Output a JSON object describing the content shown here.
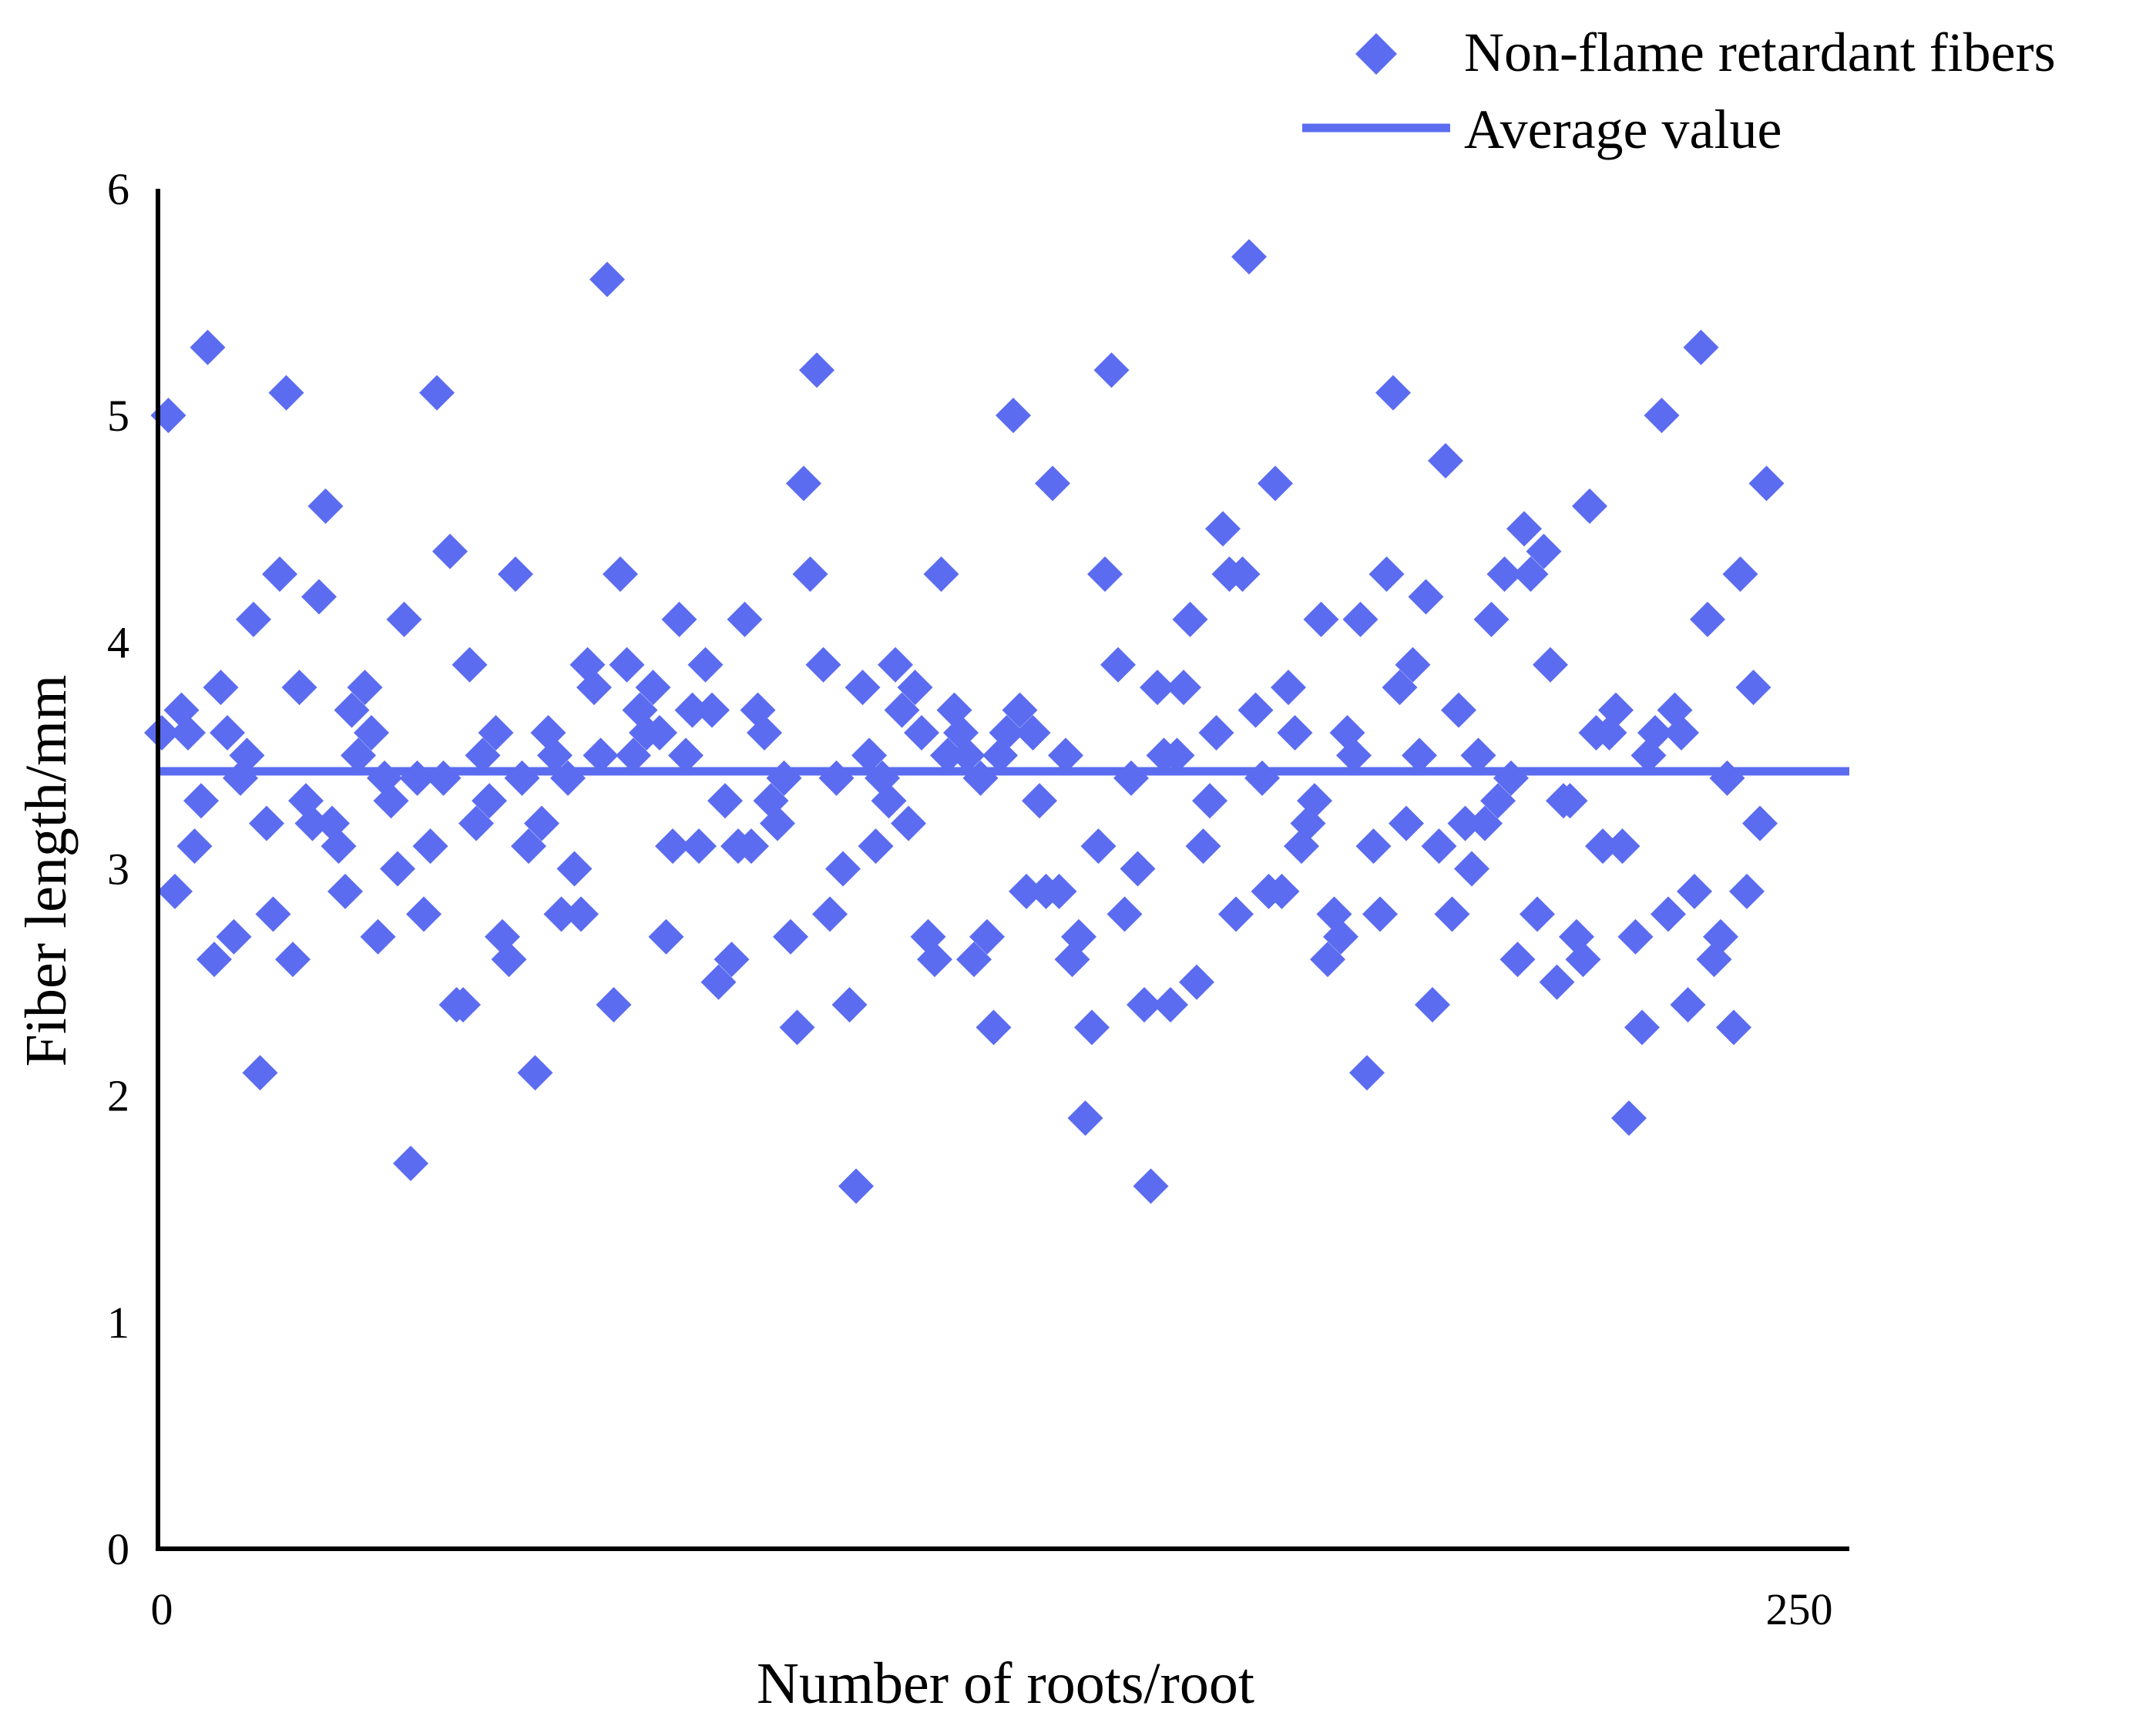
{
  "chart_data": {
    "type": "scatter",
    "title": "",
    "xlabel": "Number of roots/root",
    "ylabel": "Fiber length/mm",
    "xlim": [
      0,
      250
    ],
    "ylim": [
      0,
      6
    ],
    "x_ticks": [
      "0",
      "250"
    ],
    "y_ticks": [
      "0",
      "1",
      "2",
      "3",
      "4",
      "5",
      "6"
    ],
    "grid": false,
    "legend_position": "top-right",
    "colors": {
      "series": "#5B6CF0",
      "axis": "#000000"
    },
    "series": [
      {
        "name": "Non-flame retardant fibers",
        "marker": "diamond",
        "points": [
          [
            0,
            3.6
          ],
          [
            1,
            5.0
          ],
          [
            2,
            2.9
          ],
          [
            3,
            3.7
          ],
          [
            4,
            3.6
          ],
          [
            5,
            3.1
          ],
          [
            6,
            3.3
          ],
          [
            7,
            5.3
          ],
          [
            8,
            2.6
          ],
          [
            9,
            3.8
          ],
          [
            10,
            3.6
          ],
          [
            11,
            2.7
          ],
          [
            12,
            3.4
          ],
          [
            13,
            3.5
          ],
          [
            14,
            4.1
          ],
          [
            15,
            2.1
          ],
          [
            16,
            3.2
          ],
          [
            17,
            2.8
          ],
          [
            18,
            4.3
          ],
          [
            19,
            5.1
          ],
          [
            20,
            2.6
          ],
          [
            21,
            3.8
          ],
          [
            22,
            3.3
          ],
          [
            23,
            3.2
          ],
          [
            24,
            4.2
          ],
          [
            25,
            4.6
          ],
          [
            26,
            3.2
          ],
          [
            27,
            3.1
          ],
          [
            28,
            2.9
          ],
          [
            29,
            3.7
          ],
          [
            30,
            3.5
          ],
          [
            31,
            3.8
          ],
          [
            32,
            3.6
          ],
          [
            33,
            2.7
          ],
          [
            34,
            3.4
          ],
          [
            35,
            3.3
          ],
          [
            36,
            3.0
          ],
          [
            37,
            4.1
          ],
          [
            38,
            1.7
          ],
          [
            39,
            3.4
          ],
          [
            40,
            2.8
          ],
          [
            41,
            3.1
          ],
          [
            42,
            5.1
          ],
          [
            43,
            3.4
          ],
          [
            44,
            4.4
          ],
          [
            45,
            2.4
          ],
          [
            46,
            2.4
          ],
          [
            47,
            3.9
          ],
          [
            48,
            3.2
          ],
          [
            49,
            3.5
          ],
          [
            50,
            3.3
          ],
          [
            51,
            3.6
          ],
          [
            52,
            2.7
          ],
          [
            53,
            2.6
          ],
          [
            54,
            4.3
          ],
          [
            55,
            3.4
          ],
          [
            56,
            3.1
          ],
          [
            57,
            2.1
          ],
          [
            58,
            3.2
          ],
          [
            59,
            3.6
          ],
          [
            60,
            3.5
          ],
          [
            61,
            2.8
          ],
          [
            62,
            3.4
          ],
          [
            63,
            3.0
          ],
          [
            64,
            2.8
          ],
          [
            65,
            3.9
          ],
          [
            66,
            3.8
          ],
          [
            67,
            3.5
          ],
          [
            68,
            5.6
          ],
          [
            69,
            2.4
          ],
          [
            70,
            4.3
          ],
          [
            71,
            3.9
          ],
          [
            72,
            3.5
          ],
          [
            73,
            3.7
          ],
          [
            74,
            3.6
          ],
          [
            75,
            3.8
          ],
          [
            76,
            3.6
          ],
          [
            77,
            2.7
          ],
          [
            78,
            3.1
          ],
          [
            79,
            4.1
          ],
          [
            80,
            3.5
          ],
          [
            81,
            3.7
          ],
          [
            82,
            3.1
          ],
          [
            83,
            3.9
          ],
          [
            84,
            3.7
          ],
          [
            85,
            2.5
          ],
          [
            86,
            3.3
          ],
          [
            87,
            2.6
          ],
          [
            88,
            3.1
          ],
          [
            89,
            4.1
          ],
          [
            90,
            3.1
          ],
          [
            91,
            3.7
          ],
          [
            92,
            3.6
          ],
          [
            93,
            3.3
          ],
          [
            94,
            3.2
          ],
          [
            95,
            3.4
          ],
          [
            96,
            2.7
          ],
          [
            97,
            2.3
          ],
          [
            98,
            4.7
          ],
          [
            99,
            4.3
          ],
          [
            100,
            5.2
          ],
          [
            101,
            3.9
          ],
          [
            102,
            2.8
          ],
          [
            103,
            3.4
          ],
          [
            104,
            3.0
          ],
          [
            105,
            2.4
          ],
          [
            106,
            1.6
          ],
          [
            107,
            3.8
          ],
          [
            108,
            3.5
          ],
          [
            109,
            3.1
          ],
          [
            110,
            3.4
          ],
          [
            111,
            3.3
          ],
          [
            112,
            3.9
          ],
          [
            113,
            3.7
          ],
          [
            114,
            3.2
          ],
          [
            115,
            3.8
          ],
          [
            116,
            3.6
          ],
          [
            117,
            2.7
          ],
          [
            118,
            2.6
          ],
          [
            119,
            4.3
          ],
          [
            120,
            3.5
          ],
          [
            121,
            3.7
          ],
          [
            122,
            3.6
          ],
          [
            123,
            3.5
          ],
          [
            124,
            2.6
          ],
          [
            125,
            3.4
          ],
          [
            126,
            2.7
          ],
          [
            127,
            2.3
          ],
          [
            128,
            3.5
          ],
          [
            129,
            3.6
          ],
          [
            130,
            5.0
          ],
          [
            131,
            3.7
          ],
          [
            132,
            2.9
          ],
          [
            133,
            3.6
          ],
          [
            134,
            3.3
          ],
          [
            135,
            2.9
          ],
          [
            136,
            4.7
          ],
          [
            137,
            2.9
          ],
          [
            138,
            3.5
          ],
          [
            139,
            2.6
          ],
          [
            140,
            2.7
          ],
          [
            141,
            1.9
          ],
          [
            142,
            2.3
          ],
          [
            143,
            3.1
          ],
          [
            144,
            4.3
          ],
          [
            145,
            5.2
          ],
          [
            146,
            3.9
          ],
          [
            147,
            2.8
          ],
          [
            148,
            3.4
          ],
          [
            149,
            3.0
          ],
          [
            150,
            2.4
          ],
          [
            151,
            1.6
          ],
          [
            152,
            3.8
          ],
          [
            153,
            3.5
          ],
          [
            154,
            2.4
          ],
          [
            155,
            3.5
          ],
          [
            156,
            3.8
          ],
          [
            157,
            4.1
          ],
          [
            158,
            2.5
          ],
          [
            159,
            3.1
          ],
          [
            160,
            3.3
          ],
          [
            161,
            3.6
          ],
          [
            162,
            4.5
          ],
          [
            163,
            4.3
          ],
          [
            164,
            2.8
          ],
          [
            165,
            4.3
          ],
          [
            166,
            5.7
          ],
          [
            167,
            3.7
          ],
          [
            168,
            3.4
          ],
          [
            169,
            2.9
          ],
          [
            170,
            4.7
          ],
          [
            171,
            2.9
          ],
          [
            172,
            3.8
          ],
          [
            173,
            3.6
          ],
          [
            174,
            3.1
          ],
          [
            175,
            3.2
          ],
          [
            176,
            3.3
          ],
          [
            177,
            4.1
          ],
          [
            178,
            2.6
          ],
          [
            179,
            2.8
          ],
          [
            180,
            2.7
          ],
          [
            181,
            3.6
          ],
          [
            182,
            3.5
          ],
          [
            183,
            4.1
          ],
          [
            184,
            2.1
          ],
          [
            185,
            3.1
          ],
          [
            186,
            2.8
          ],
          [
            187,
            4.3
          ],
          [
            188,
            5.1
          ],
          [
            189,
            3.8
          ],
          [
            190,
            3.2
          ],
          [
            191,
            3.9
          ],
          [
            192,
            3.5
          ],
          [
            193,
            4.2
          ],
          [
            194,
            2.4
          ],
          [
            195,
            3.1
          ],
          [
            196,
            4.8
          ],
          [
            197,
            2.8
          ],
          [
            198,
            3.7
          ],
          [
            199,
            3.2
          ],
          [
            200,
            3.0
          ],
          [
            201,
            3.5
          ],
          [
            202,
            3.2
          ],
          [
            203,
            4.1
          ],
          [
            204,
            3.3
          ],
          [
            205,
            4.3
          ],
          [
            206,
            3.4
          ],
          [
            207,
            2.6
          ],
          [
            208,
            4.5
          ],
          [
            209,
            4.3
          ],
          [
            210,
            2.8
          ],
          [
            211,
            4.4
          ],
          [
            212,
            3.9
          ],
          [
            213,
            2.5
          ],
          [
            214,
            3.3
          ],
          [
            215,
            3.3
          ],
          [
            216,
            2.7
          ],
          [
            217,
            2.6
          ],
          [
            218,
            4.6
          ],
          [
            219,
            3.6
          ],
          [
            220,
            3.1
          ],
          [
            221,
            3.6
          ],
          [
            222,
            3.7
          ],
          [
            223,
            3.1
          ],
          [
            224,
            1.9
          ],
          [
            225,
            2.7
          ],
          [
            226,
            2.3
          ],
          [
            227,
            3.5
          ],
          [
            228,
            3.6
          ],
          [
            229,
            5.0
          ],
          [
            230,
            2.8
          ],
          [
            231,
            3.7
          ],
          [
            232,
            3.6
          ],
          [
            233,
            2.4
          ],
          [
            234,
            2.9
          ],
          [
            235,
            5.3
          ],
          [
            236,
            4.1
          ],
          [
            237,
            2.6
          ],
          [
            238,
            2.7
          ],
          [
            239,
            3.4
          ],
          [
            240,
            2.3
          ],
          [
            241,
            4.3
          ],
          [
            242,
            2.9
          ],
          [
            243,
            3.8
          ],
          [
            244,
            3.2
          ],
          [
            245,
            4.7
          ]
        ]
      },
      {
        "name": "Average value",
        "type": "line",
        "y": 3.43
      }
    ]
  }
}
